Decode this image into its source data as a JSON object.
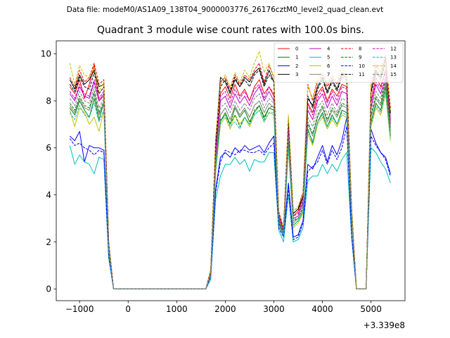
{
  "figure": {
    "suptitle": "Data file: modeM0/AS1A09_138T04_9000003776_26176cztM0_level2_quad_clean.evt"
  },
  "chart_data": {
    "type": "line",
    "title": "Quadrant 3 module wise count rates with 100.0s bins.",
    "xlabel": "",
    "ylabel": "",
    "offset_label": "+3.339e8",
    "xlim": [
      -1480,
      5700
    ],
    "ylim": [
      -0.5,
      10.55
    ],
    "xticks": [
      -1000,
      0,
      1000,
      2000,
      3000,
      4000,
      5000
    ],
    "xtick_labels": [
      "−1000",
      "0",
      "1000",
      "2000",
      "3000",
      "4000",
      "5000"
    ],
    "yticks": [
      0,
      2,
      4,
      6,
      8,
      10
    ],
    "ytick_labels": [
      "0",
      "2",
      "4",
      "6",
      "8",
      "10"
    ],
    "legend_position": "top-right",
    "legend_columns": 4,
    "x": [
      -1200,
      -1100,
      -1000,
      -900,
      -800,
      -700,
      -600,
      -500,
      -400,
      -300,
      -200,
      -100,
      0,
      100,
      200,
      300,
      400,
      500,
      600,
      700,
      800,
      900,
      1000,
      1100,
      1200,
      1300,
      1400,
      1500,
      1600,
      1700,
      1800,
      1900,
      2000,
      2100,
      2200,
      2300,
      2400,
      2500,
      2600,
      2700,
      2800,
      2900,
      3000,
      3100,
      3200,
      3300,
      3400,
      3500,
      3600,
      3700,
      3800,
      3900,
      4000,
      4100,
      4200,
      4300,
      4400,
      4500,
      4600,
      4700,
      4800,
      4900,
      5000,
      5100,
      5200,
      5300,
      5400
    ],
    "series": [
      {
        "name": "0",
        "color": "#ff0000",
        "dash": "solid",
        "values": [
          8.6,
          8.3,
          8.9,
          8.1,
          8.7,
          9.5,
          8.0,
          8.2,
          1.9,
          0,
          0,
          0,
          0,
          0,
          0,
          0,
          0,
          0,
          0,
          0,
          0,
          0,
          0,
          0,
          0,
          0,
          0,
          0,
          0,
          0.7,
          5.6,
          8.3,
          8.6,
          8.1,
          8.7,
          8.2,
          8.5,
          8.0,
          8.6,
          8.9,
          8.3,
          8.6,
          8.2,
          3.1,
          2.5,
          6.9,
          3.1,
          3.3,
          3.9,
          7.9,
          7.5,
          8.3,
          8.6,
          8.0,
          8.5,
          8.2,
          8.7,
          8.6,
          3.3,
          0,
          0,
          0,
          8.0,
          9.0,
          8.6,
          9.3,
          7.2
        ]
      },
      {
        "name": "1",
        "color": "#008000",
        "dash": "solid",
        "values": [
          7.7,
          7.4,
          8.0,
          7.6,
          7.3,
          8.1,
          7.2,
          7.9,
          1.6,
          0,
          0,
          0,
          0,
          0,
          0,
          0,
          0,
          0,
          0,
          0,
          0,
          0,
          0,
          0,
          0,
          0,
          0,
          0,
          0,
          0.5,
          5.0,
          7.1,
          7.5,
          7.0,
          7.7,
          7.3,
          7.6,
          7.1,
          7.5,
          7.8,
          7.3,
          7.7,
          7.6,
          2.8,
          2.3,
          6.1,
          2.7,
          2.9,
          3.3,
          6.8,
          6.2,
          7.1,
          7.5,
          6.9,
          7.4,
          7.0,
          7.6,
          7.5,
          3.0,
          0,
          0,
          0,
          7.1,
          7.9,
          7.6,
          8.6,
          6.5
        ]
      },
      {
        "name": "2",
        "color": "#0000ff",
        "dash": "solid",
        "values": [
          6.5,
          6.3,
          6.7,
          5.4,
          6.1,
          6.0,
          6.0,
          5.9,
          1.4,
          0,
          0,
          0,
          0,
          0,
          0,
          0,
          0,
          0,
          0,
          0,
          0,
          0,
          0,
          0,
          0,
          0,
          0,
          0,
          0,
          0.5,
          4.2,
          5.6,
          5.8,
          5.6,
          6.0,
          5.8,
          6.1,
          5.9,
          6.0,
          6.1,
          5.8,
          6.2,
          6.5,
          2.8,
          2.3,
          4.5,
          2.2,
          2.3,
          2.9,
          5.3,
          5.1,
          5.6,
          6.1,
          5.4,
          6.1,
          5.7,
          6.3,
          7.3,
          2.3,
          0,
          0,
          0,
          6.8,
          6.2,
          5.8,
          5.6,
          4.9
        ]
      },
      {
        "name": "3",
        "color": "#000000",
        "dash": "solid",
        "values": [
          8.9,
          8.5,
          9.1,
          8.7,
          8.9,
          9.3,
          8.6,
          8.7,
          2.0,
          0,
          0,
          0,
          0,
          0,
          0,
          0,
          0,
          0,
          0,
          0,
          0,
          0,
          0,
          0,
          0,
          0,
          0,
          0,
          0,
          0.8,
          6.2,
          9.0,
          8.8,
          8.3,
          8.9,
          8.6,
          9.0,
          8.8,
          9.2,
          9.4,
          8.7,
          9.3,
          8.8,
          3.2,
          2.6,
          7.2,
          3.2,
          3.4,
          4.0,
          8.1,
          7.8,
          8.6,
          9.0,
          8.4,
          8.9,
          8.5,
          9.1,
          9.0,
          3.4,
          0,
          0,
          0,
          8.4,
          9.3,
          9.0,
          9.8,
          7.5
        ]
      },
      {
        "name": "4",
        "color": "#bf00bf",
        "dash": "solid",
        "values": [
          8.3,
          8.0,
          8.6,
          8.2,
          8.1,
          8.8,
          8.0,
          8.3,
          1.8,
          0,
          0,
          0,
          0,
          0,
          0,
          0,
          0,
          0,
          0,
          0,
          0,
          0,
          0,
          0,
          0,
          0,
          0,
          0,
          0,
          0.6,
          5.5,
          8.0,
          8.2,
          7.7,
          8.3,
          7.9,
          8.2,
          7.8,
          8.3,
          8.6,
          8.0,
          8.4,
          8.0,
          3.0,
          2.4,
          6.6,
          3.0,
          3.1,
          3.7,
          7.6,
          7.2,
          8.0,
          8.3,
          7.7,
          8.2,
          7.8,
          8.4,
          8.3,
          3.2,
          0,
          0,
          0,
          7.7,
          8.7,
          8.3,
          9.0,
          7.0
        ]
      },
      {
        "name": "5",
        "color": "#00bfbf",
        "dash": "solid",
        "values": [
          6.1,
          5.3,
          5.7,
          5.4,
          5.3,
          4.9,
          5.6,
          5.5,
          1.3,
          0,
          0,
          0,
          0,
          0,
          0,
          0,
          0,
          0,
          0,
          0,
          0,
          0,
          0,
          0,
          0,
          0,
          0,
          0,
          0,
          0.4,
          3.8,
          4.8,
          5.3,
          5.3,
          5.6,
          5.3,
          5.5,
          5.0,
          5.5,
          5.4,
          5.4,
          5.8,
          5.8,
          2.5,
          2.0,
          4.0,
          2.0,
          2.1,
          2.6,
          4.6,
          4.8,
          4.8,
          5.3,
          4.9,
          5.3,
          5.0,
          5.5,
          5.8,
          2.2,
          0,
          0,
          0,
          6.0,
          5.8,
          5.4,
          5.1,
          4.5
        ]
      },
      {
        "name": "6",
        "color": "#bfbf00",
        "dash": "solid",
        "values": [
          7.6,
          6.9,
          7.7,
          7.5,
          7.0,
          7.3,
          6.7,
          7.6,
          1.6,
          0,
          0,
          0,
          0,
          0,
          0,
          0,
          0,
          0,
          0,
          0,
          0,
          0,
          0,
          0,
          0,
          0,
          0,
          0,
          0,
          0.5,
          4.9,
          7.0,
          7.3,
          6.8,
          7.4,
          7.0,
          7.3,
          6.9,
          7.4,
          7.6,
          7.1,
          7.5,
          7.4,
          2.7,
          2.2,
          6.0,
          2.6,
          2.8,
          3.2,
          6.6,
          6.1,
          7.0,
          7.3,
          6.8,
          7.2,
          6.9,
          7.4,
          7.3,
          2.9,
          0,
          0,
          0,
          6.9,
          7.7,
          7.4,
          8.3,
          6.3
        ]
      },
      {
        "name": "7",
        "color": "#808080",
        "dash": "solid",
        "values": [
          7.8,
          7.5,
          8.1,
          7.7,
          7.6,
          8.3,
          7.4,
          7.9,
          1.7,
          0,
          0,
          0,
          0,
          0,
          0,
          0,
          0,
          0,
          0,
          0,
          0,
          0,
          0,
          0,
          0,
          0,
          0,
          0,
          0,
          0.6,
          5.2,
          7.4,
          7.7,
          7.2,
          7.8,
          7.4,
          7.7,
          7.3,
          7.8,
          8.0,
          7.5,
          7.9,
          7.7,
          2.9,
          2.3,
          6.3,
          2.8,
          3.0,
          3.4,
          7.0,
          6.5,
          7.3,
          7.7,
          7.1,
          7.6,
          7.3,
          7.8,
          7.7,
          3.1,
          0,
          0,
          0,
          7.3,
          8.1,
          7.8,
          8.8,
          6.7
        ]
      },
      {
        "name": "8",
        "color": "#ff0000",
        "dash": "dashed",
        "values": [
          9.0,
          8.6,
          9.3,
          8.8,
          9.0,
          9.6,
          8.7,
          8.9,
          2.0,
          0,
          0,
          0,
          0,
          0,
          0,
          0,
          0,
          0,
          0,
          0,
          0,
          0,
          0,
          0,
          0,
          0,
          0,
          0,
          0,
          0.8,
          6.3,
          8.8,
          9.0,
          8.5,
          9.1,
          8.7,
          9.1,
          8.9,
          9.3,
          9.6,
          8.8,
          9.5,
          9.0,
          3.3,
          2.6,
          7.3,
          3.3,
          3.5,
          4.1,
          8.7,
          8.0,
          8.8,
          9.1,
          8.6,
          9.0,
          8.7,
          9.2,
          9.1,
          3.5,
          0,
          0,
          0,
          8.6,
          9.5,
          9.2,
          9.9,
          7.7
        ]
      },
      {
        "name": "9",
        "color": "#008000",
        "dash": "dashed",
        "values": [
          7.9,
          7.6,
          8.2,
          7.8,
          7.7,
          8.4,
          7.5,
          8.0,
          1.7,
          0,
          0,
          0,
          0,
          0,
          0,
          0,
          0,
          0,
          0,
          0,
          0,
          0,
          0,
          0,
          0,
          0,
          0,
          0,
          0,
          0.6,
          5.3,
          7.2,
          7.4,
          7.0,
          7.4,
          6.9,
          7.3,
          7.0,
          7.6,
          7.8,
          7.2,
          7.7,
          7.8,
          2.9,
          2.4,
          6.4,
          2.9,
          3.0,
          3.5,
          7.1,
          6.6,
          7.4,
          7.8,
          7.2,
          7.7,
          7.4,
          7.9,
          7.8,
          3.1,
          0,
          0,
          0,
          7.4,
          8.2,
          7.9,
          8.9,
          6.8
        ]
      },
      {
        "name": "10",
        "color": "#0000ff",
        "dash": "dashed",
        "values": [
          6.4,
          6.1,
          6.2,
          6.0,
          5.9,
          5.7,
          5.9,
          5.8,
          1.4,
          0,
          0,
          0,
          0,
          0,
          0,
          0,
          0,
          0,
          0,
          0,
          0,
          0,
          0,
          0,
          0,
          0,
          0,
          0,
          0,
          0.5,
          4.1,
          5.4,
          5.9,
          5.8,
          5.7,
          5.9,
          5.9,
          5.8,
          5.8,
          5.9,
          5.7,
          6.0,
          6.2,
          2.6,
          2.2,
          4.3,
          2.1,
          2.2,
          2.8,
          5.0,
          5.2,
          5.4,
          5.9,
          5.3,
          5.9,
          5.5,
          6.0,
          6.9,
          2.3,
          0,
          0,
          0,
          6.5,
          6.1,
          5.8,
          5.5,
          4.8
        ]
      },
      {
        "name": "11",
        "color": "#000000",
        "dash": "dashed",
        "values": [
          8.7,
          8.4,
          9.0,
          8.6,
          8.5,
          9.2,
          8.3,
          8.6,
          1.9,
          0,
          0,
          0,
          0,
          0,
          0,
          0,
          0,
          0,
          0,
          0,
          0,
          0,
          0,
          0,
          0,
          0,
          0,
          0,
          0,
          0.7,
          6.0,
          8.6,
          8.9,
          8.4,
          9.0,
          8.6,
          8.9,
          8.6,
          9.1,
          9.3,
          8.6,
          9.1,
          8.8,
          3.2,
          2.5,
          7.1,
          3.2,
          3.4,
          3.9,
          8.2,
          7.7,
          8.5,
          8.9,
          8.3,
          8.8,
          8.4,
          9.0,
          8.9,
          3.4,
          0,
          0,
          0,
          8.3,
          9.2,
          8.9,
          9.6,
          7.4
        ]
      },
      {
        "name": "12",
        "color": "#bf00bf",
        "dash": "dashed",
        "values": [
          8.4,
          8.1,
          8.7,
          8.3,
          8.2,
          8.9,
          8.1,
          8.4,
          1.8,
          0,
          0,
          0,
          0,
          0,
          0,
          0,
          0,
          0,
          0,
          0,
          0,
          0,
          0,
          0,
          0,
          0,
          0,
          0,
          0,
          0.7,
          5.7,
          8.2,
          8.4,
          7.9,
          8.5,
          8.1,
          8.4,
          8.0,
          8.5,
          8.7,
          8.1,
          8.6,
          8.3,
          3.1,
          2.5,
          6.8,
          3.1,
          3.2,
          3.8,
          7.8,
          7.4,
          8.1,
          8.5,
          7.9,
          8.4,
          8.0,
          8.6,
          8.5,
          3.3,
          0,
          0,
          0,
          7.9,
          8.8,
          8.5,
          9.2,
          7.1
        ]
      },
      {
        "name": "13",
        "color": "#00bfbf",
        "dash": "dashed",
        "values": [
          7.5,
          7.2,
          7.8,
          7.4,
          7.3,
          7.9,
          7.1,
          7.6,
          1.6,
          0,
          0,
          0,
          0,
          0,
          0,
          0,
          0,
          0,
          0,
          0,
          0,
          0,
          0,
          0,
          0,
          0,
          0,
          0,
          0,
          0.5,
          5.0,
          7.1,
          7.4,
          6.9,
          7.1,
          6.8,
          7.3,
          7.0,
          7.4,
          7.6,
          7.1,
          7.5,
          7.5,
          2.8,
          2.2,
          6.0,
          2.7,
          2.9,
          3.3,
          6.7,
          6.3,
          7.1,
          7.4,
          6.9,
          7.3,
          7.0,
          7.5,
          7.4,
          3.0,
          0,
          0,
          0,
          7.0,
          7.8,
          7.5,
          8.4,
          6.4
        ]
      },
      {
        "name": "14",
        "color": "#bfbf00",
        "dash": "dashed",
        "values": [
          9.6,
          8.7,
          9.5,
          9.1,
          9.0,
          9.4,
          8.4,
          8.8,
          2.0,
          0,
          0,
          0,
          0,
          0,
          0,
          0,
          0,
          0,
          0,
          0,
          0,
          0,
          0,
          0,
          0,
          0,
          0,
          0,
          0,
          0.8,
          6.4,
          8.7,
          9.1,
          8.6,
          9.2,
          8.8,
          9.3,
          9.0,
          9.6,
          10.1,
          9.2,
          9.6,
          9.0,
          3.2,
          2.6,
          7.4,
          3.3,
          3.5,
          4.0,
          8.6,
          8.1,
          9.0,
          9.2,
          8.7,
          9.1,
          8.8,
          9.4,
          9.1,
          3.5,
          0,
          0,
          0,
          8.7,
          9.6,
          9.2,
          9.7,
          7.6
        ]
      },
      {
        "name": "15",
        "color": "#808080",
        "dash": "dashed",
        "values": [
          8.1,
          7.8,
          8.4,
          8.0,
          7.9,
          8.6,
          7.7,
          8.1,
          1.7,
          0,
          0,
          0,
          0,
          0,
          0,
          0,
          0,
          0,
          0,
          0,
          0,
          0,
          0,
          0,
          0,
          0,
          0,
          0,
          0,
          0.6,
          5.4,
          7.7,
          7.9,
          7.5,
          8.0,
          7.6,
          7.9,
          7.6,
          8.1,
          8.3,
          7.7,
          8.1,
          7.9,
          3.0,
          2.4,
          6.5,
          2.9,
          3.1,
          3.6,
          7.3,
          6.9,
          7.7,
          8.0,
          7.4,
          7.9,
          7.5,
          8.1,
          8.0,
          3.2,
          0,
          0,
          0,
          7.6,
          8.4,
          8.1,
          9.0,
          6.9
        ]
      }
    ]
  }
}
